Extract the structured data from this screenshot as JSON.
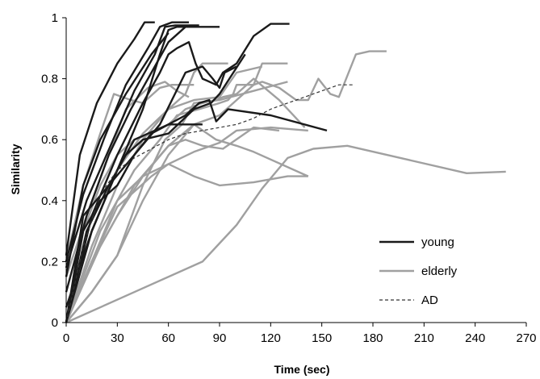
{
  "chart_data": {
    "type": "line",
    "title": "",
    "xlabel": "Time (sec)",
    "ylabel": "Similarity",
    "xlim": [
      0,
      270
    ],
    "ylim": [
      0,
      1
    ],
    "x_ticks": [
      0,
      30,
      60,
      90,
      120,
      150,
      180,
      210,
      240,
      270
    ],
    "y_ticks": [
      0,
      0.2,
      0.4,
      0.6,
      0.8,
      1
    ],
    "grid": false,
    "legend_position": "bottom-right",
    "colors": {
      "young": "#1a1a1a",
      "elderly": "#a0a0a0",
      "AD": "#333333"
    },
    "legend": [
      {
        "group": "young",
        "label": "young",
        "style": "solid"
      },
      {
        "group": "elderly",
        "label": "elderly",
        "style": "solid"
      },
      {
        "group": "AD",
        "label": "AD",
        "style": "dashed"
      }
    ],
    "series": [
      {
        "group": "young",
        "x": [
          0,
          8,
          18,
          30,
          40,
          46,
          52
        ],
        "y": [
          0.22,
          0.55,
          0.72,
          0.85,
          0.93,
          0.985,
          0.985
        ]
      },
      {
        "group": "young",
        "x": [
          0,
          10,
          22,
          35,
          48,
          55,
          62,
          72
        ],
        "y": [
          0.2,
          0.42,
          0.6,
          0.78,
          0.9,
          0.97,
          0.985,
          0.985
        ]
      },
      {
        "group": "young",
        "x": [
          0,
          12,
          26,
          40,
          52,
          58,
          64,
          78
        ],
        "y": [
          0.18,
          0.4,
          0.58,
          0.76,
          0.88,
          0.97,
          0.975,
          0.975
        ]
      },
      {
        "group": "young",
        "x": [
          0,
          12,
          25,
          38,
          50,
          60,
          70,
          80,
          90
        ],
        "y": [
          0.1,
          0.35,
          0.55,
          0.7,
          0.82,
          0.92,
          0.97,
          0.97,
          0.97
        ]
      },
      {
        "group": "young",
        "x": [
          0,
          15,
          30,
          45,
          55,
          60,
          65,
          75
        ],
        "y": [
          0.05,
          0.3,
          0.5,
          0.7,
          0.88,
          0.96,
          0.97,
          0.97
        ]
      },
      {
        "group": "young",
        "x": [
          0,
          10,
          20,
          35,
          50,
          60
        ],
        "y": [
          0.15,
          0.45,
          0.6,
          0.75,
          0.88,
          0.95
        ]
      },
      {
        "group": "young",
        "x": [
          0,
          15,
          30,
          45,
          55,
          60,
          65,
          72,
          76,
          80,
          88,
          92,
          100,
          110,
          120,
          131
        ],
        "y": [
          0.0,
          0.35,
          0.55,
          0.72,
          0.82,
          0.88,
          0.9,
          0.92,
          0.85,
          0.8,
          0.78,
          0.82,
          0.85,
          0.94,
          0.98,
          0.98
        ]
      },
      {
        "group": "young",
        "x": [
          0,
          12,
          25,
          40,
          55,
          70,
          80,
          86,
          90,
          93,
          100
        ],
        "y": [
          0.0,
          0.3,
          0.45,
          0.55,
          0.65,
          0.82,
          0.84,
          0.8,
          0.77,
          0.82,
          0.84
        ]
      },
      {
        "group": "young",
        "x": [
          0,
          10,
          25,
          35,
          45,
          60,
          75,
          85,
          90,
          105
        ],
        "y": [
          0.0,
          0.35,
          0.45,
          0.55,
          0.6,
          0.62,
          0.7,
          0.72,
          0.75,
          0.88
        ]
      },
      {
        "group": "young",
        "x": [
          0,
          10,
          20,
          30,
          40,
          50,
          60,
          70,
          78,
          84,
          88,
          95,
          120,
          153
        ],
        "y": [
          0.0,
          0.3,
          0.4,
          0.45,
          0.55,
          0.62,
          0.65,
          0.68,
          0.72,
          0.73,
          0.66,
          0.7,
          0.68,
          0.63
        ]
      },
      {
        "group": "young",
        "x": [
          0,
          15,
          30,
          40,
          60,
          70,
          80
        ],
        "y": [
          0.0,
          0.3,
          0.5,
          0.6,
          0.65,
          0.65,
          0.65
        ]
      },
      {
        "group": "elderly",
        "x": [
          0,
          10,
          20,
          28,
          38,
          45,
          55,
          62,
          75
        ],
        "y": [
          0.2,
          0.45,
          0.62,
          0.75,
          0.73,
          0.72,
          0.77,
          0.78,
          0.78
        ]
      },
      {
        "group": "elderly",
        "x": [
          0,
          12,
          25,
          35,
          48,
          58,
          65,
          72
        ],
        "y": [
          0.15,
          0.35,
          0.55,
          0.7,
          0.77,
          0.79,
          0.76,
          0.74
        ]
      },
      {
        "group": "elderly",
        "x": [
          0,
          15,
          30,
          45,
          60,
          70,
          75,
          80,
          95
        ],
        "y": [
          0.0,
          0.3,
          0.5,
          0.62,
          0.7,
          0.75,
          0.82,
          0.85,
          0.85
        ]
      },
      {
        "group": "elderly",
        "x": [
          0,
          15,
          30,
          45,
          60,
          75,
          90,
          100,
          115
        ],
        "y": [
          0.0,
          0.25,
          0.45,
          0.6,
          0.7,
          0.73,
          0.74,
          0.82,
          0.84
        ]
      },
      {
        "group": "elderly",
        "x": [
          0,
          20,
          40,
          55,
          65,
          78,
          90,
          95,
          98,
          100,
          110,
          115,
          130
        ],
        "y": [
          0.0,
          0.3,
          0.5,
          0.6,
          0.68,
          0.7,
          0.72,
          0.73,
          0.75,
          0.78,
          0.78,
          0.85,
          0.85
        ]
      },
      {
        "group": "elderly",
        "x": [
          0,
          20,
          40,
          60,
          75,
          90,
          100,
          110,
          115,
          125,
          135,
          142,
          148,
          155,
          160,
          170,
          178,
          188
        ],
        "y": [
          0.0,
          0.25,
          0.45,
          0.58,
          0.65,
          0.68,
          0.73,
          0.78,
          0.79,
          0.77,
          0.73,
          0.73,
          0.8,
          0.75,
          0.74,
          0.88,
          0.89,
          0.89
        ]
      },
      {
        "group": "elderly",
        "x": [
          0,
          10,
          20,
          30,
          40,
          50,
          60,
          70,
          80,
          88,
          92,
          100,
          110,
          125,
          140
        ],
        "y": [
          0.0,
          0.3,
          0.45,
          0.55,
          0.6,
          0.62,
          0.65,
          0.7,
          0.72,
          0.73,
          0.74,
          0.75,
          0.8,
          0.73,
          0.64
        ]
      },
      {
        "group": "elderly",
        "x": [
          0,
          15,
          30,
          45,
          60,
          70,
          80,
          92,
          110,
          125
        ],
        "y": [
          0.0,
          0.2,
          0.35,
          0.48,
          0.58,
          0.6,
          0.58,
          0.57,
          0.64,
          0.63
        ]
      },
      {
        "group": "elderly",
        "x": [
          0,
          15,
          30,
          50,
          60,
          75,
          90,
          100,
          120,
          142
        ],
        "y": [
          0.0,
          0.2,
          0.38,
          0.48,
          0.52,
          0.56,
          0.59,
          0.63,
          0.64,
          0.63
        ]
      },
      {
        "group": "elderly",
        "x": [
          0,
          15,
          30,
          45,
          58,
          68,
          75,
          90,
          110,
          130
        ],
        "y": [
          0.0,
          0.1,
          0.22,
          0.45,
          0.6,
          0.65,
          0.72,
          0.73,
          0.76,
          0.79
        ]
      },
      {
        "group": "elderly",
        "x": [
          0,
          15,
          30,
          45,
          60,
          75,
          88,
          100,
          110,
          142
        ],
        "y": [
          0.0,
          0.1,
          0.22,
          0.4,
          0.55,
          0.65,
          0.6,
          0.58,
          0.56,
          0.48
        ]
      },
      {
        "group": "elderly",
        "x": [
          0,
          15,
          30,
          45,
          60,
          75,
          90,
          110,
          130,
          142
        ],
        "y": [
          0.0,
          0.2,
          0.4,
          0.48,
          0.52,
          0.48,
          0.45,
          0.46,
          0.48,
          0.48
        ]
      },
      {
        "group": "elderly",
        "x": [
          0,
          40,
          80,
          100,
          115,
          130,
          145,
          165,
          235,
          258
        ],
        "y": [
          0.0,
          0.1,
          0.2,
          0.32,
          0.44,
          0.54,
          0.57,
          0.58,
          0.49,
          0.495
        ]
      },
      {
        "group": "AD",
        "x": [
          0,
          10,
          20,
          30,
          40,
          50,
          60,
          70,
          80,
          90,
          100,
          110,
          120,
          130,
          140,
          150,
          160,
          168
        ],
        "y": [
          0.0,
          0.25,
          0.42,
          0.5,
          0.54,
          0.57,
          0.6,
          0.62,
          0.63,
          0.64,
          0.65,
          0.67,
          0.7,
          0.72,
          0.74,
          0.76,
          0.78,
          0.78
        ]
      }
    ]
  }
}
